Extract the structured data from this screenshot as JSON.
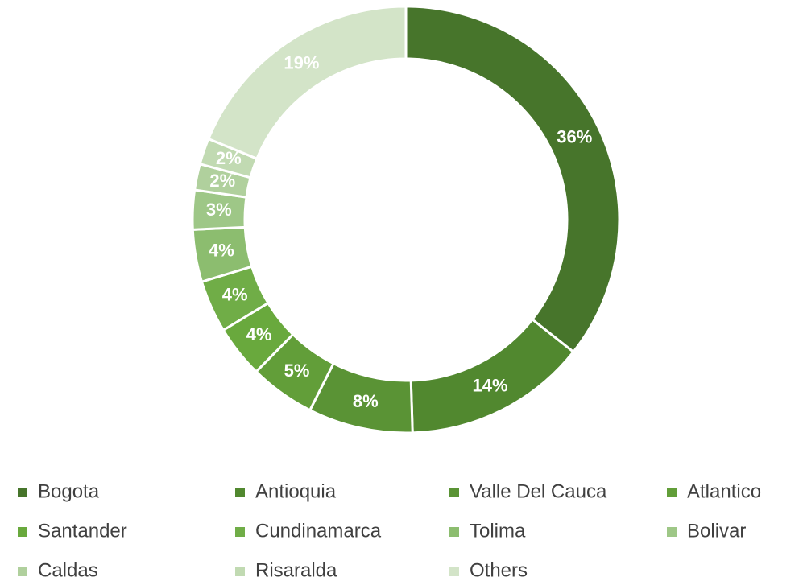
{
  "chart_data": {
    "type": "donut",
    "categories": [
      "Bogota",
      "Antioquia",
      "Valle Del Cauca",
      "Atlantico",
      "Santander",
      "Cundinamarca",
      "Tolima",
      "Bolivar",
      "Caldas",
      "Risaralda",
      "Others"
    ],
    "values": [
      36,
      14,
      8,
      5,
      4,
      4,
      4,
      3,
      2,
      2,
      19
    ],
    "value_labels": [
      "36%",
      "14%",
      "8%",
      "5%",
      "4%",
      "4%",
      "4%",
      "3%",
      "2%",
      "2%",
      "19%"
    ],
    "colors": [
      "#47752b",
      "#51882f",
      "#5a9335",
      "#629e39",
      "#69a93d",
      "#70ad47",
      "#8cbd6f",
      "#9ec787",
      "#b0d09d",
      "#c1dab2",
      "#d3e4c8"
    ],
    "legend": "bottom"
  }
}
